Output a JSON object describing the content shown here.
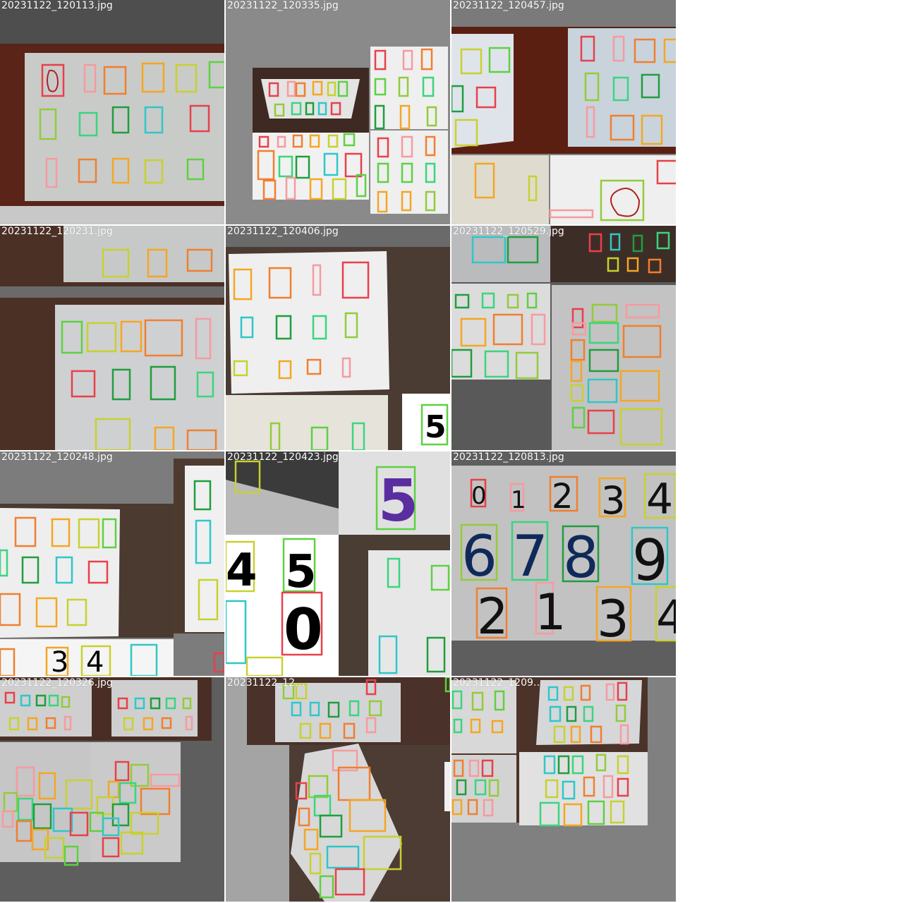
{
  "tiles": [
    {
      "filename": "20231122_120113.jpg"
    },
    {
      "filename": "20231122_120335.jpg"
    },
    {
      "filename": "20231122_120457.jpg"
    },
    {
      "filename": "20231122_120231.jpg"
    },
    {
      "filename": "20231122_120406.jpg"
    },
    {
      "filename": "20231122_120529.jpg"
    },
    {
      "filename": "20231122_120248.jpg"
    },
    {
      "filename": "20231122_120423.jpg"
    },
    {
      "filename": "20231122_120813.jpg"
    },
    {
      "filename": "20231122_120326.jpg"
    },
    {
      "filename": "20231122_12…"
    },
    {
      "filename": "20231122_1209…"
    }
  ],
  "class_colors": {
    "0": "#e8404a",
    "1": "#f79aa0",
    "2": "#f07f30",
    "3": "#f5a623",
    "4": "#c8d12e",
    "5": "#5ed142",
    "6": "#92cc3a",
    "7": "#3ad57f",
    "8": "#1f9e3e",
    "9": "#2fc7c9"
  }
}
